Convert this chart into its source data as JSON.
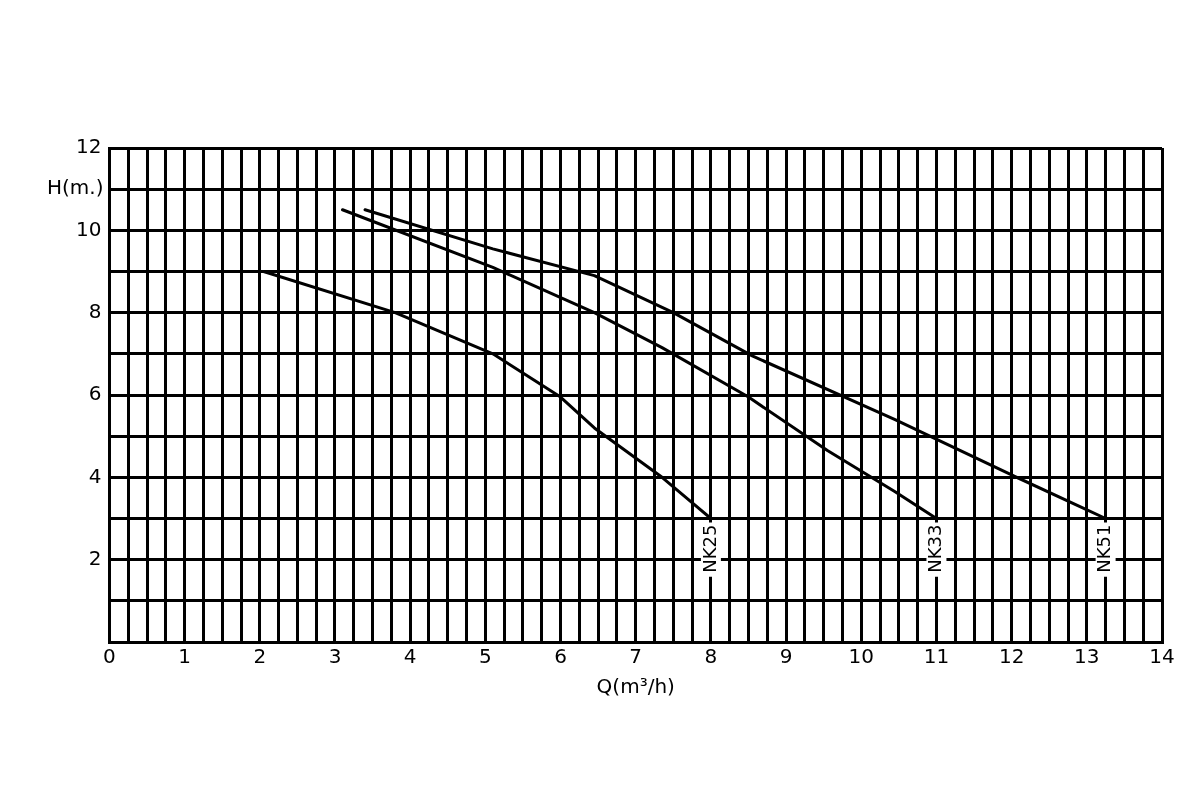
{
  "chart_data": {
    "type": "line",
    "xlabel": "Q(m³/h)",
    "ylabel": "H(m.)",
    "xlim": [
      0,
      14
    ],
    "ylim": [
      0,
      12
    ],
    "xticks": [
      0,
      {
        "value": 0.25,
        "label": null
      },
      {
        "value": 0.5,
        "label": null
      },
      {
        "value": 0.75,
        "label": null
      },
      1,
      {
        "value": 1.25,
        "label": null
      },
      {
        "value": 1.5,
        "label": null
      },
      {
        "value": 1.75,
        "label": null
      },
      2,
      {
        "value": 2.25,
        "label": null
      },
      {
        "value": 2.5,
        "label": null
      },
      {
        "value": 2.75,
        "label": null
      },
      3,
      {
        "value": 3.25,
        "label": null
      },
      {
        "value": 3.5,
        "label": null
      },
      {
        "value": 3.75,
        "label": null
      },
      4,
      {
        "value": 4.25,
        "label": null
      },
      {
        "value": 4.5,
        "label": null
      },
      {
        "value": 4.75,
        "label": null
      },
      5,
      {
        "value": 5.25,
        "label": null
      },
      {
        "value": 5.5,
        "label": null
      },
      {
        "value": 5.75,
        "label": null
      },
      6,
      {
        "value": 6.25,
        "label": null
      },
      {
        "value": 6.5,
        "label": null
      },
      {
        "value": 6.75,
        "label": null
      },
      7,
      {
        "value": 7.25,
        "label": null
      },
      {
        "value": 7.5,
        "label": null
      },
      {
        "value": 7.75,
        "label": null
      },
      8,
      {
        "value": 8.25,
        "label": null
      },
      {
        "value": 8.5,
        "label": null
      },
      {
        "value": 8.75,
        "label": null
      },
      9,
      {
        "value": 9.25,
        "label": null
      },
      {
        "value": 9.5,
        "label": null
      },
      {
        "value": 9.75,
        "label": null
      },
      10,
      {
        "value": 10.25,
        "label": null
      },
      {
        "value": 10.5,
        "label": null
      },
      {
        "value": 10.75,
        "label": null
      },
      11,
      {
        "value": 11.25,
        "label": null
      },
      {
        "value": 11.5,
        "label": null
      },
      {
        "value": 11.75,
        "label": null
      },
      12,
      {
        "value": 12.25,
        "label": null
      },
      {
        "value": 12.5,
        "label": null
      },
      {
        "value": 12.75,
        "label": null
      },
      13,
      {
        "value": 13.25,
        "label": null
      },
      {
        "value": 13.5,
        "label": null
      },
      {
        "value": 13.75,
        "label": null
      },
      14
    ],
    "yticks": [
      {
        "value": 0,
        "label": null
      },
      {
        "value": 1,
        "label": null
      },
      2,
      {
        "value": 3,
        "label": null
      },
      4,
      {
        "value": 5,
        "label": null
      },
      6,
      {
        "value": 7,
        "label": null
      },
      8,
      {
        "value": 9,
        "label": null
      },
      10,
      {
        "value": 11,
        "label": null
      },
      12
    ],
    "grid": true,
    "legend": false,
    "marker": "none",
    "line_style": "solid",
    "series": [
      {
        "name": "NK25",
        "color": "#000000",
        "x": [
          2.05,
          3.8,
          5.1,
          6.0,
          6.45,
          7.35,
          8.0
        ],
        "values": [
          9.0,
          8.0,
          7.0,
          5.95,
          5.2,
          4.0,
          3.0
        ]
      },
      {
        "name": "NK33",
        "color": "#000000",
        "x": [
          3.1,
          5.1,
          6.45,
          7.35,
          8.5,
          9.55,
          10.45,
          11.0
        ],
        "values": [
          10.5,
          9.1,
          8.0,
          7.15,
          5.95,
          4.65,
          3.65,
          3.0
        ]
      },
      {
        "name": "NK51",
        "color": "#000000",
        "x": [
          3.4,
          5.1,
          6.45,
          7.5,
          8.55,
          10.45,
          11.95,
          13.25
        ],
        "values": [
          10.5,
          9.55,
          8.9,
          8.0,
          6.95,
          5.4,
          4.1,
          3.0
        ]
      }
    ]
  }
}
